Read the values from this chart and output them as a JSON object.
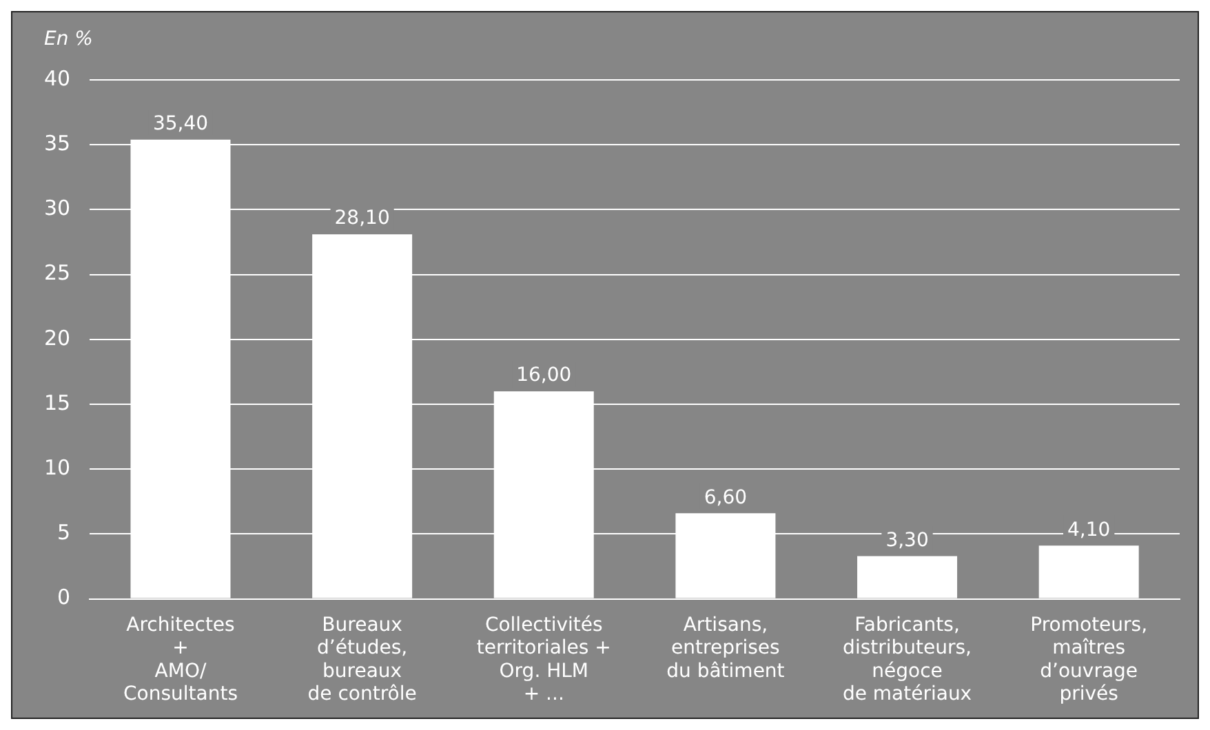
{
  "chart_data": {
    "type": "bar",
    "ylabel": "En %",
    "categories": [
      "Architectes\n+\nAMO/\nConsultants",
      "Bureaux\nd’études,\nbureaux\nde contrôle",
      "Collectivités\nterritoriales +\nOrg. HLM\n+ ...",
      "Artisans,\nentreprises\ndu bâtiment",
      "Fabricants,\ndistributeurs,\nnégoce\nde matériaux",
      "Promoteurs,\nmaîtres\nd’ouvrage\nprivés"
    ],
    "values": [
      35.4,
      28.1,
      16.0,
      6.6,
      3.3,
      4.1
    ],
    "value_labels": [
      "35,40",
      "28,10",
      "16,00",
      "6,60",
      "3,30",
      "4,10"
    ],
    "color": "#ffffff",
    "ylim": [
      0,
      40
    ],
    "yticks": [
      0,
      5,
      10,
      15,
      20,
      25,
      30,
      35,
      40
    ],
    "grid": "y",
    "legend": false
  }
}
